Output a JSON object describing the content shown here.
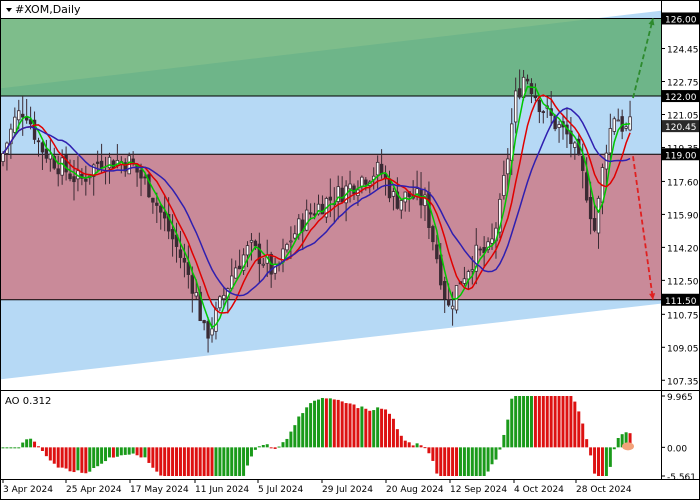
{
  "chart_data": [
    {
      "type": "candlestick",
      "title": "#XOM,Daily",
      "symbol": "#XOM",
      "timeframe": "Daily",
      "ylim": [
        106.9,
        126.9
      ],
      "y_ticks": [
        126.0,
        124.45,
        122.75,
        121.05,
        119.35,
        117.6,
        115.9,
        114.2,
        112.5,
        110.75,
        109.05,
        107.35
      ],
      "x_ticks": [
        "3 Apr 2024",
        "25 Apr 2024",
        "17 May 2024",
        "11 Jun 2024",
        "5 Jul 2024",
        "29 Jul 2024",
        "20 Aug 2024",
        "12 Sep 2024",
        "4 Oct 2024",
        "28 Oct 2024"
      ],
      "grid": false,
      "price_labels": [
        {
          "value": 126.0,
          "label": "126.00",
          "color": "#000000"
        },
        {
          "value": 122.0,
          "label": "122.00",
          "color": "#000000"
        },
        {
          "value": 120.45,
          "label": "120.45",
          "color": "#2a2a2a"
        },
        {
          "value": 119.0,
          "label": "119.00",
          "color": "#000000"
        },
        {
          "value": 111.5,
          "label": "111.50",
          "color": "#000000"
        }
      ],
      "levels": {
        "resistance": 126.0,
        "upper": 122.0,
        "pivot": 119.0,
        "support": 111.5
      },
      "channel": {
        "upper_start": 122.4,
        "upper_end": 126.4,
        "lower_start": 107.4,
        "lower_end": 111.3
      },
      "zones": [
        {
          "name": "buy-zone",
          "from": 122.0,
          "to": 126.0,
          "color": "#5aab6a"
        },
        {
          "name": "sell-zone",
          "from": 111.5,
          "to": 119.0,
          "color": "#c98a99"
        },
        {
          "name": "channel",
          "color": "#b6d9f5"
        }
      ],
      "forecast_arrows": [
        {
          "direction": "up",
          "from": 121.9,
          "to": 126.0,
          "color": "#2d8a2d"
        },
        {
          "direction": "down",
          "from": 118.9,
          "to": 111.5,
          "color": "#e02020"
        }
      ],
      "moving_averages": [
        {
          "color": "#00c800"
        },
        {
          "color": "#e00000"
        },
        {
          "color": "#2f1fb0"
        }
      ],
      "candles": []
    },
    {
      "type": "histogram",
      "title": "AO 0.312",
      "value": 0.312,
      "ylim": [
        -5.561,
        9.965
      ],
      "y_ticks": [
        "9.965",
        "0.00",
        "-5.561"
      ],
      "up_color": "#1a9a1a",
      "down_color": "#dd1111"
    }
  ]
}
